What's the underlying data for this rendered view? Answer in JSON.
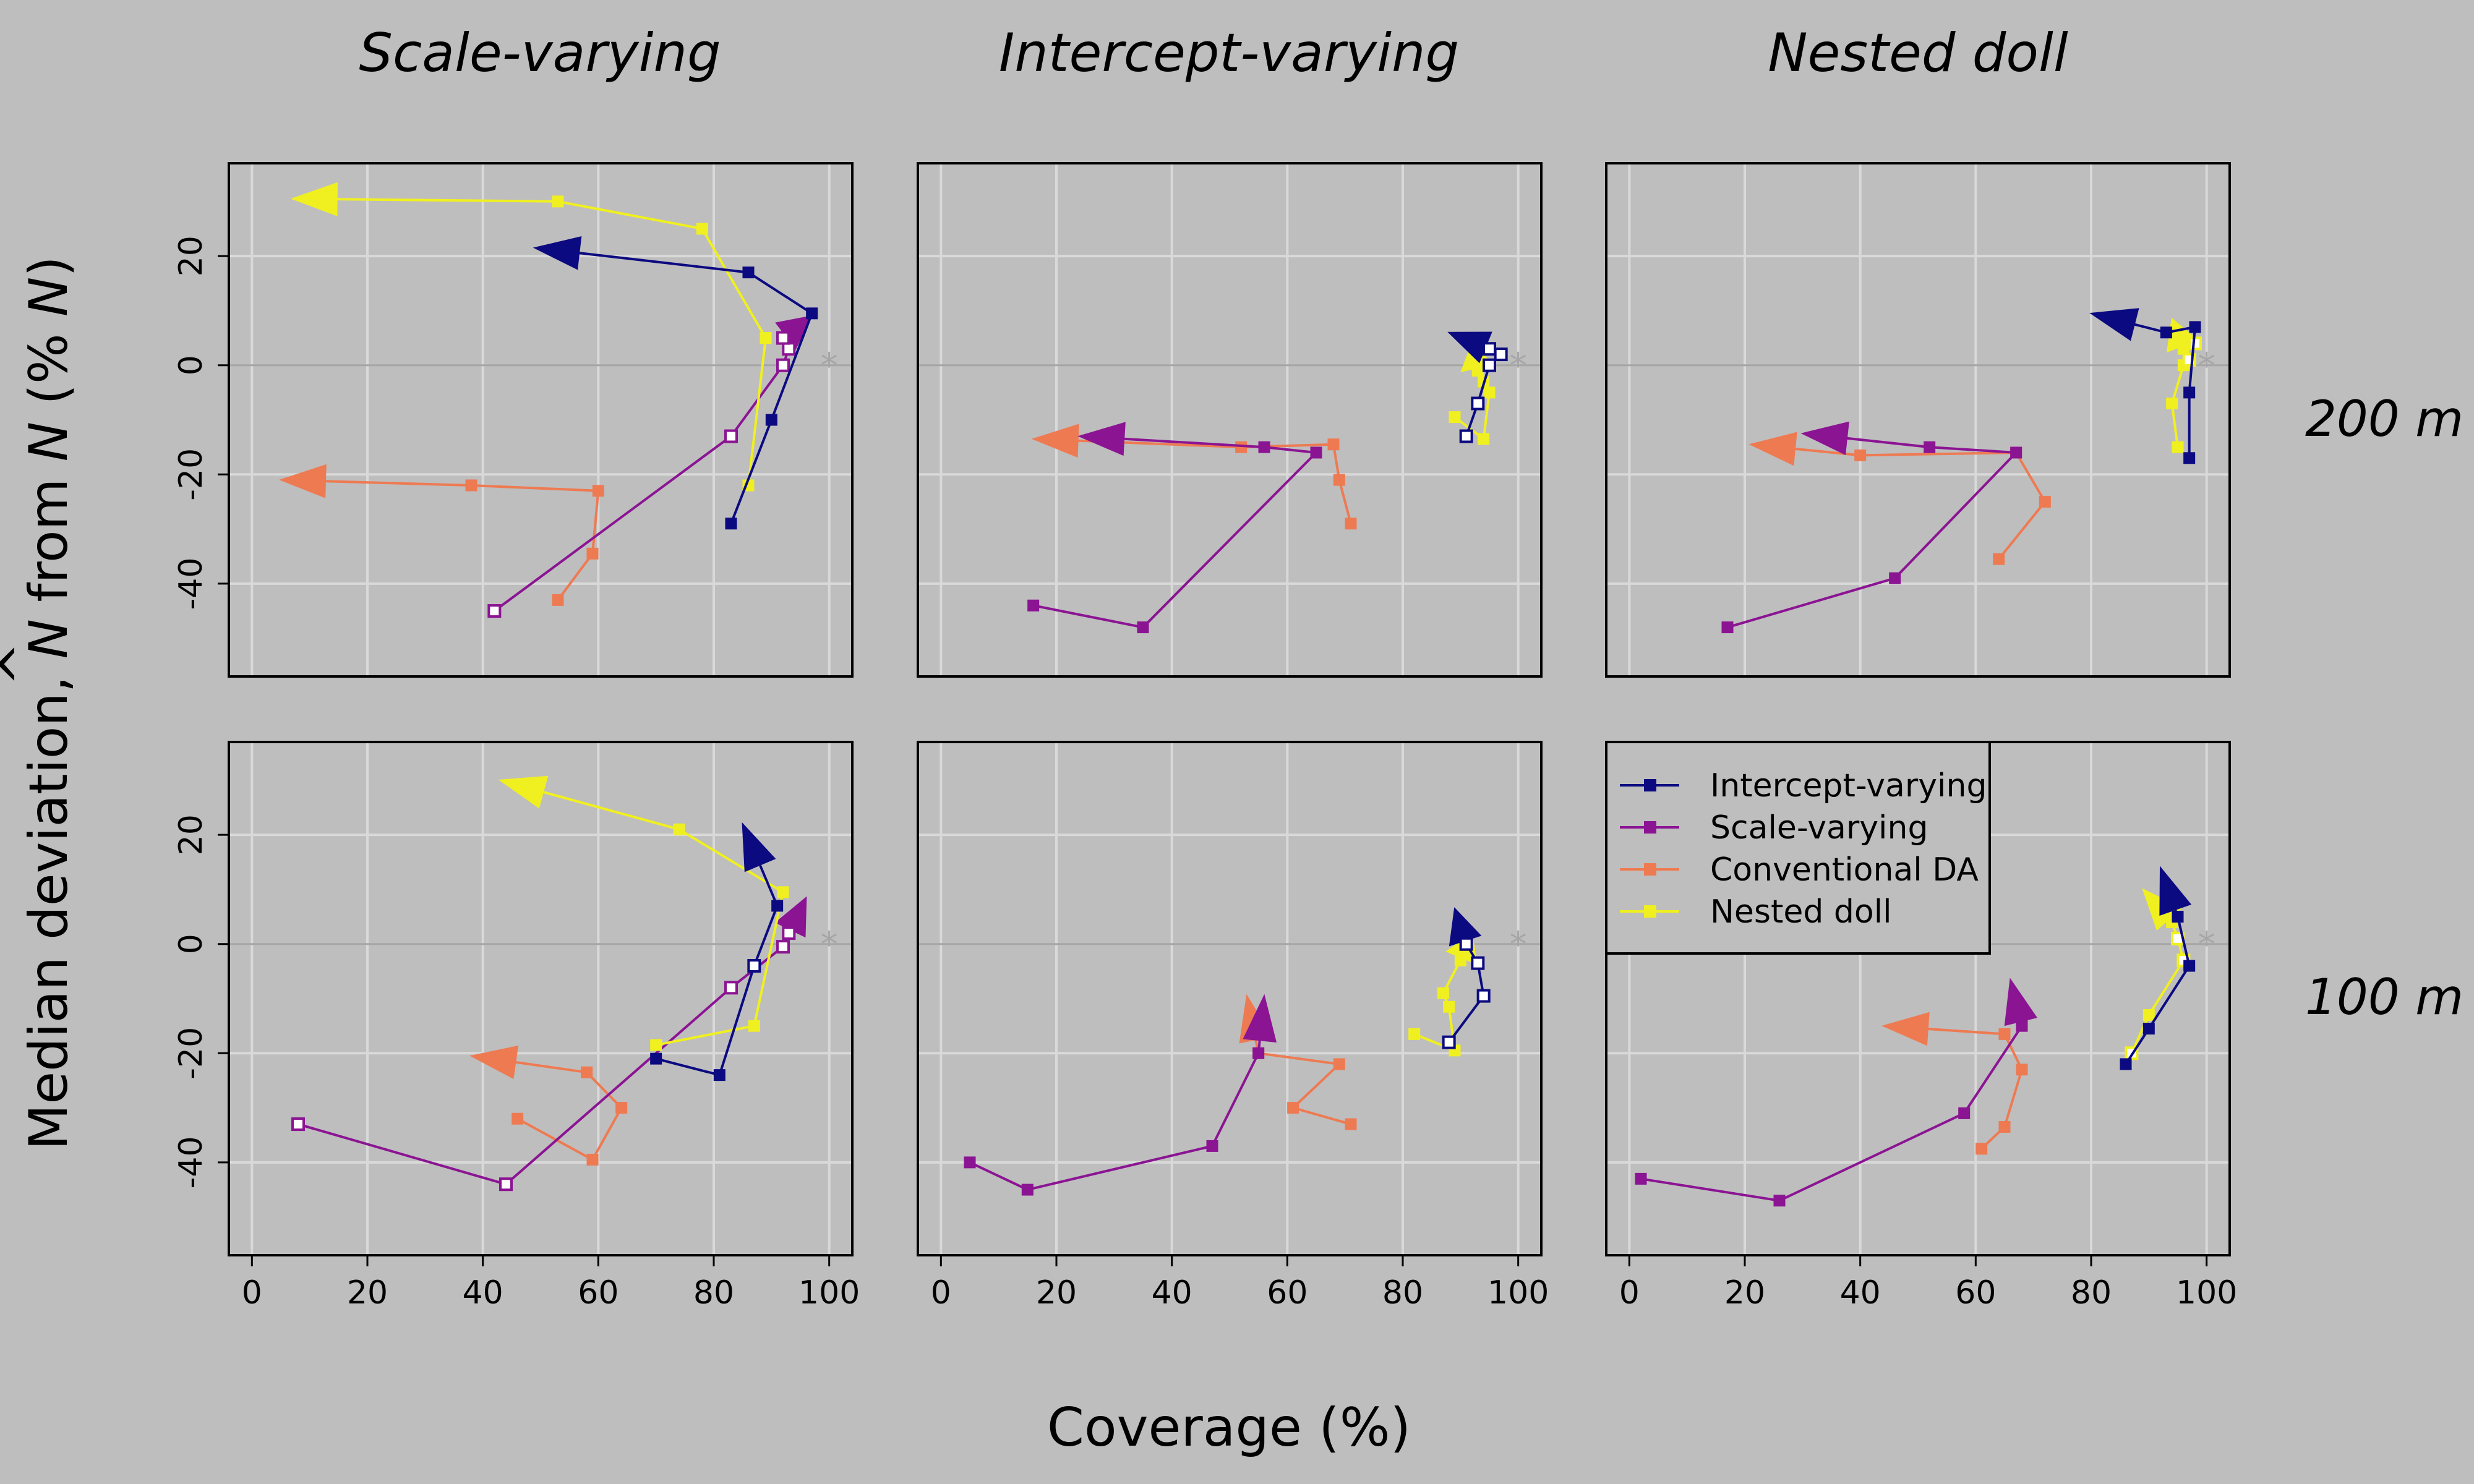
{
  "figure": {
    "column_titles": [
      "Scale-varying",
      "Intercept-varying",
      "Nested doll"
    ],
    "row_titles": [
      "200 m",
      "100 m"
    ],
    "xlabel": "Coverage (%)",
    "ylabel_pre": "Median deviation, ",
    "ylabel_n": "N",
    "ylabel_hat": "^",
    "ylabel_mid": " from ",
    "ylabel_n2": "N",
    "ylabel_post": " (% ",
    "ylabel_n3": "N",
    "ylabel_end": ")",
    "xlim": [
      -4,
      104
    ],
    "ylim": [
      -57,
      37
    ],
    "xticks": [
      0,
      20,
      40,
      60,
      80,
      100
    ],
    "yticks": [
      -40,
      -20,
      0,
      20
    ],
    "target_marker": "*",
    "target_point": [
      100,
      0
    ]
  },
  "colors": {
    "background": "#bebebe",
    "grid": "#d9d9d9",
    "zero_line": "#a6a6a6",
    "Intercept-varying": "#0c0a80",
    "Scale-varying": "#8b1493",
    "Conventional DA": "#ee7a52",
    "Nested doll": "#f0f020"
  },
  "legend": {
    "entries": [
      "Intercept-varying",
      "Scale-varying",
      "Conventional DA",
      "Nested doll"
    ],
    "placement": "top-left of bottom-right panel"
  },
  "chart_data": [
    {
      "type": "line",
      "panel": "200 m / Scale-varying",
      "arrows": true,
      "series": [
        {
          "name": "Intercept-varying",
          "points": [
            [
              83,
              -29
            ],
            [
              90,
              -10
            ],
            [
              97,
              9.5
            ],
            [
              86,
              17
            ],
            [
              49,
              21.5
            ]
          ],
          "hollow": []
        },
        {
          "name": "Scale-varying",
          "points": [
            [
              42,
              -45
            ],
            [
              83,
              -13
            ],
            [
              92,
              0
            ],
            [
              93,
              3
            ],
            [
              92,
              5
            ],
            [
              97,
              9
            ]
          ],
          "hollow": [
            0,
            1,
            2,
            3,
            4
          ]
        },
        {
          "name": "Conventional DA",
          "points": [
            [
              53,
              -43
            ],
            [
              59,
              -34.5
            ],
            [
              60,
              -23
            ],
            [
              38,
              -22
            ],
            [
              5,
              -21
            ]
          ],
          "hollow": []
        },
        {
          "name": "Nested doll",
          "points": [
            [
              86,
              -22
            ],
            [
              89,
              5
            ],
            [
              78,
              25
            ],
            [
              53,
              30
            ],
            [
              7,
              30.5
            ]
          ],
          "hollow": []
        }
      ]
    },
    {
      "type": "line",
      "panel": "200 m / Intercept-varying",
      "arrows": true,
      "series": [
        {
          "name": "Intercept-varying",
          "points": [
            [
              91,
              -13
            ],
            [
              93,
              -7
            ],
            [
              95,
              0
            ],
            [
              97,
              2
            ],
            [
              95,
              3
            ],
            [
              88,
              6
            ]
          ],
          "hollow": [
            0,
            1,
            2,
            3,
            4
          ]
        },
        {
          "name": "Scale-varying",
          "points": [
            [
              16,
              -44
            ],
            [
              35,
              -48
            ],
            [
              65,
              -16
            ],
            [
              56,
              -15
            ],
            [
              24,
              -13
            ]
          ],
          "hollow": []
        },
        {
          "name": "Conventional DA",
          "points": [
            [
              71,
              -29
            ],
            [
              69,
              -21
            ],
            [
              68,
              -14.5
            ],
            [
              52,
              -15
            ],
            [
              16,
              -13.5
            ]
          ],
          "hollow": []
        },
        {
          "name": "Nested doll",
          "points": [
            [
              89,
              -9.5
            ],
            [
              94,
              -13.5
            ],
            [
              95,
              -5
            ],
            [
              94,
              -3
            ],
            [
              93,
              -1
            ],
            [
              92,
              4
            ]
          ],
          "hollow": []
        }
      ]
    },
    {
      "type": "line",
      "panel": "200 m / Nested doll",
      "arrows": true,
      "series": [
        {
          "name": "Intercept-varying",
          "points": [
            [
              97,
              -17
            ],
            [
              97,
              -5
            ],
            [
              98,
              7
            ],
            [
              93,
              6
            ],
            [
              80,
              9.5
            ]
          ],
          "hollow": []
        },
        {
          "name": "Scale-varying",
          "points": [
            [
              17,
              -48
            ],
            [
              46,
              -39
            ],
            [
              67,
              -16
            ],
            [
              52,
              -15
            ],
            [
              30,
              -12.5
            ]
          ],
          "hollow": []
        },
        {
          "name": "Conventional DA",
          "points": [
            [
              64,
              -35.5
            ],
            [
              72,
              -25
            ],
            [
              67,
              -16
            ],
            [
              40,
              -16.5
            ],
            [
              21,
              -14.5
            ]
          ],
          "hollow": []
        },
        {
          "name": "Nested doll",
          "points": [
            [
              95,
              -15
            ],
            [
              94,
              -7
            ],
            [
              96,
              0
            ],
            [
              97,
              1
            ],
            [
              98,
              4
            ],
            [
              96,
              3
            ],
            [
              94,
              8.5
            ]
          ],
          "hollow": [
            3,
            4
          ]
        }
      ]
    },
    {
      "type": "line",
      "panel": "100 m / Scale-varying",
      "arrows": true,
      "series": [
        {
          "name": "Intercept-varying",
          "points": [
            [
              70,
              -21
            ],
            [
              81,
              -24
            ],
            [
              87,
              -4
            ],
            [
              91,
              7
            ],
            [
              85,
              22
            ]
          ],
          "hollow": [
            2
          ]
        },
        {
          "name": "Scale-varying",
          "points": [
            [
              8,
              -33
            ],
            [
              44,
              -44
            ],
            [
              83,
              -8
            ],
            [
              92,
              -0.5
            ],
            [
              93,
              2
            ],
            [
              96,
              8.5
            ]
          ],
          "hollow": [
            0,
            1,
            2,
            3,
            4
          ]
        },
        {
          "name": "Conventional DA",
          "points": [
            [
              46,
              -32
            ],
            [
              59,
              -39.5
            ],
            [
              64,
              -30
            ],
            [
              58,
              -23.5
            ],
            [
              38,
              -20.5
            ]
          ],
          "hollow": []
        },
        {
          "name": "Nested doll",
          "points": [
            [
              70,
              -18.5
            ],
            [
              87,
              -15
            ],
            [
              92,
              9.5
            ],
            [
              74,
              21
            ],
            [
              43,
              30
            ]
          ],
          "hollow": []
        }
      ]
    },
    {
      "type": "line",
      "panel": "100 m / Intercept-varying",
      "arrows": true,
      "series": [
        {
          "name": "Intercept-varying",
          "points": [
            [
              88,
              -18
            ],
            [
              94,
              -9.5
            ],
            [
              93,
              -3.5
            ],
            [
              91,
              0
            ],
            [
              89,
              6.5
            ]
          ],
          "hollow": [
            0,
            1,
            2,
            3
          ]
        },
        {
          "name": "Scale-varying",
          "points": [
            [
              5,
              -40
            ],
            [
              15,
              -45
            ],
            [
              47,
              -37
            ],
            [
              55,
              -20
            ],
            [
              56,
              -9.5
            ]
          ],
          "hollow": []
        },
        {
          "name": "Conventional DA",
          "points": [
            [
              71,
              -33
            ],
            [
              61,
              -30
            ],
            [
              69,
              -22
            ],
            [
              55,
              -20
            ],
            [
              53,
              -9.5
            ]
          ],
          "hollow": []
        },
        {
          "name": "Nested doll",
          "points": [
            [
              82,
              -16.5
            ],
            [
              89,
              -19.5
            ],
            [
              88,
              -11.5
            ],
            [
              87,
              -9
            ],
            [
              90,
              -3
            ],
            [
              92,
              2
            ]
          ],
          "hollow": []
        }
      ]
    },
    {
      "type": "line",
      "panel": "100 m / Nested doll",
      "arrows": true,
      "series": [
        {
          "name": "Intercept-varying",
          "points": [
            [
              86,
              -22
            ],
            [
              90,
              -15.5
            ],
            [
              97,
              -4
            ],
            [
              95,
              5
            ],
            [
              92,
              14
            ]
          ],
          "hollow": []
        },
        {
          "name": "Scale-varying",
          "points": [
            [
              2,
              -43
            ],
            [
              26,
              -47
            ],
            [
              58,
              -31
            ],
            [
              68,
              -15
            ],
            [
              66,
              -6.5
            ]
          ],
          "hollow": []
        },
        {
          "name": "Conventional DA",
          "points": [
            [
              61,
              -37.5
            ],
            [
              65,
              -33.5
            ],
            [
              68,
              -23
            ],
            [
              65,
              -16.5
            ],
            [
              44,
              -15
            ]
          ],
          "hollow": []
        },
        {
          "name": "Nested doll",
          "points": [
            [
              87,
              -20
            ],
            [
              90,
              -13
            ],
            [
              96,
              -3
            ],
            [
              95,
              1
            ],
            [
              94,
              4
            ],
            [
              89,
              10
            ]
          ],
          "hollow": [
            0,
            2,
            3
          ]
        }
      ]
    }
  ]
}
